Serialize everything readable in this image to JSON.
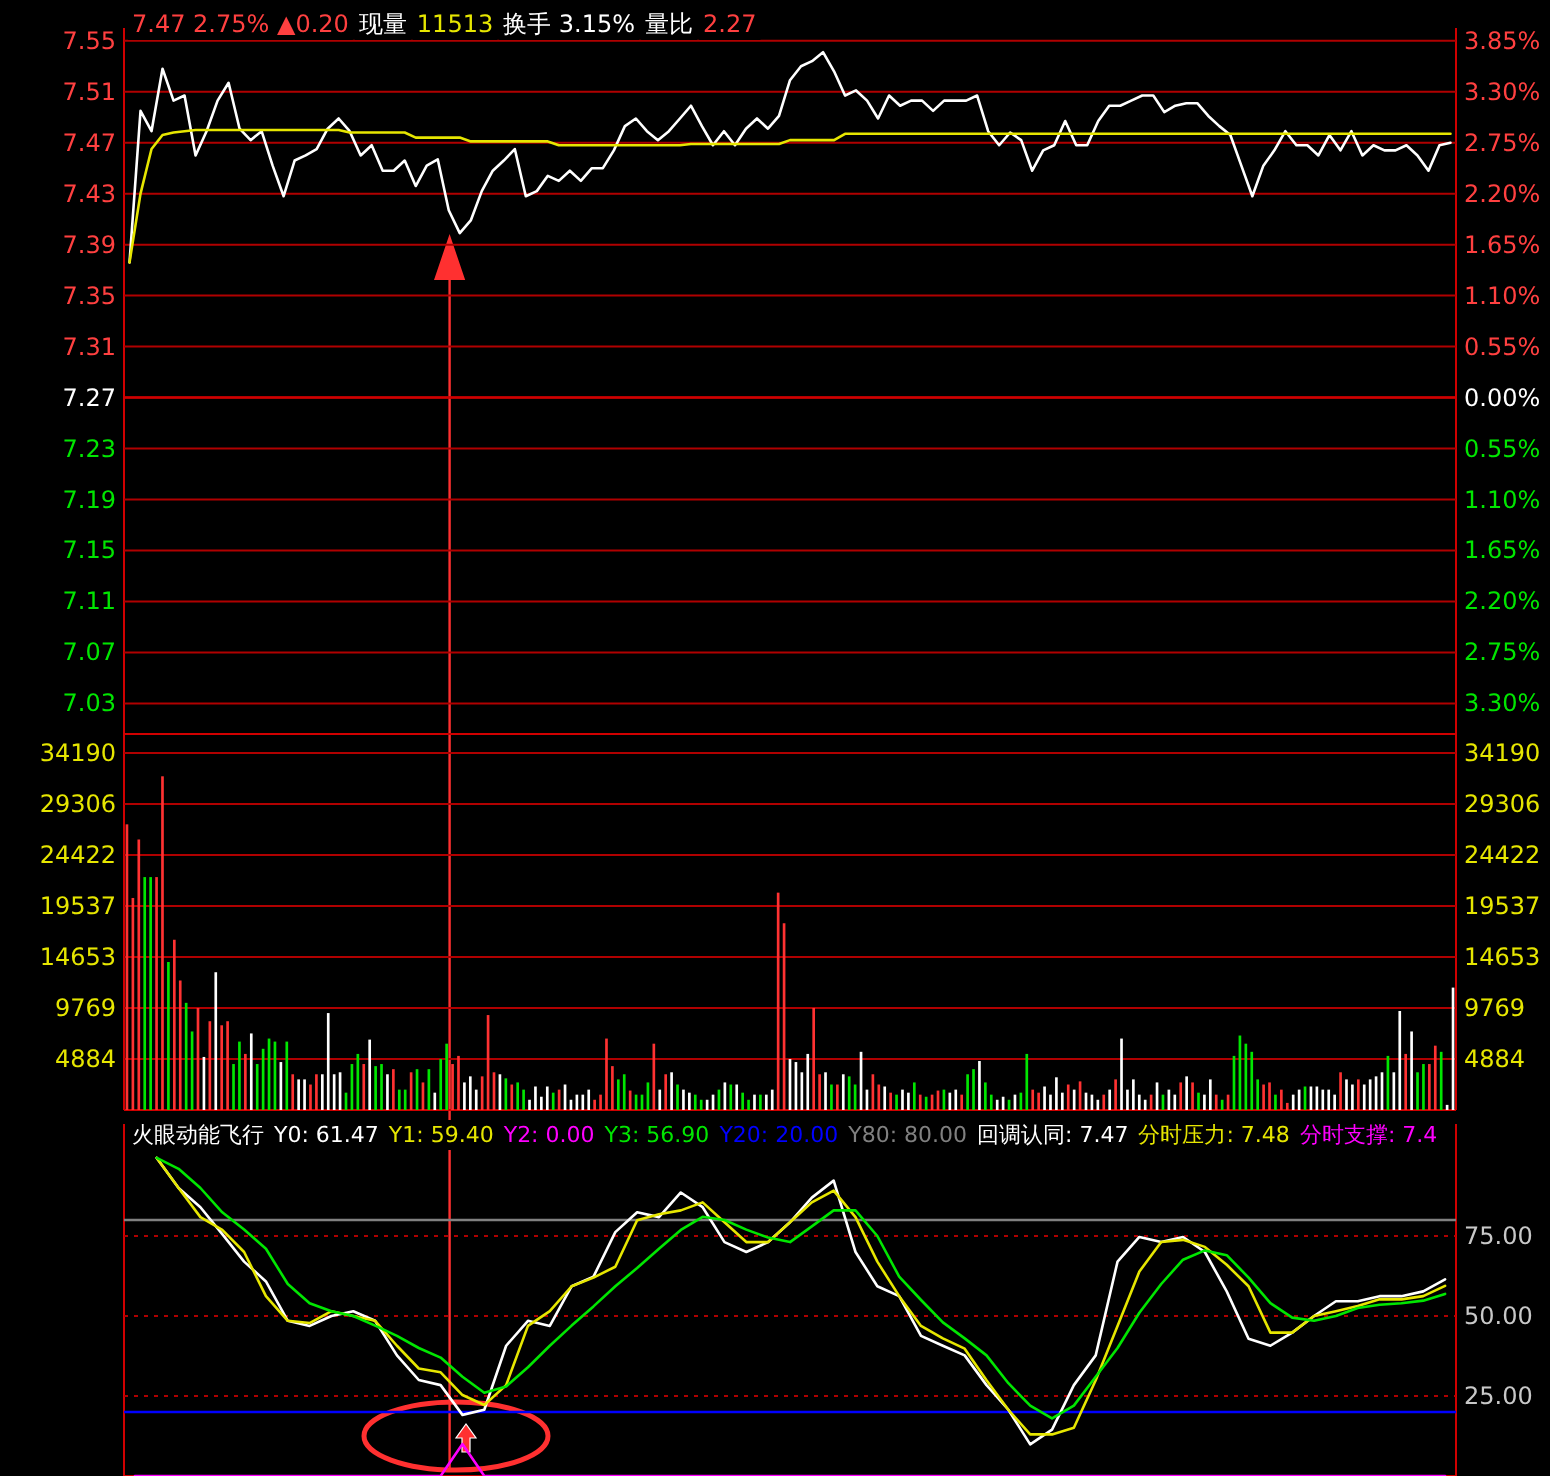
{
  "chart_data": [
    {
      "type": "line",
      "annotations": [
        "7.47 2.75% ▲0.20",
        "现量",
        "11513",
        "换手 3.15%",
        "量比",
        "2.27"
      ],
      "categories": [
        null,
        null,
        null,
        null,
        null,
        null,
        null,
        null,
        null,
        null,
        null,
        null,
        null,
        null,
        null,
        null,
        null,
        null,
        null,
        null,
        null,
        null,
        null,
        null,
        null,
        null,
        null,
        null,
        null,
        null,
        null,
        null,
        null,
        null,
        null,
        null,
        null,
        null,
        null,
        null,
        null,
        null,
        null,
        null,
        null,
        null,
        null,
        null,
        null,
        null,
        null,
        null,
        null,
        null,
        null,
        null,
        null,
        null,
        null,
        null,
        null,
        null,
        null,
        null,
        null,
        null,
        null,
        null,
        null,
        null,
        null,
        null,
        null,
        null,
        null,
        null,
        null,
        null,
        null,
        null,
        null,
        null,
        null,
        null,
        null,
        null,
        null,
        null,
        null,
        null,
        null,
        null,
        null,
        null,
        null,
        null,
        null,
        null,
        null,
        null,
        null,
        null,
        null,
        null,
        null,
        null,
        null,
        null,
        null,
        null,
        null,
        null,
        null,
        null,
        null,
        null,
        null,
        null,
        null,
        null,
        null
      ],
      "ylim": [
        7.006,
        7.56
      ],
      "yticks": [
        7.55,
        7.51,
        7.47,
        7.43,
        7.39,
        7.35,
        7.31,
        7.27,
        7.23,
        7.19,
        7.15,
        7.11,
        7.07,
        7.03
      ],
      "y2lim": [
        -3.631,
        3.989
      ],
      "y2ticks": [
        {
          "value": 3.85,
          "label": "3.85%"
        },
        {
          "value": 3.3,
          "label": "3.30%"
        },
        {
          "value": 2.75,
          "label": "2.75%"
        },
        {
          "value": 2.2,
          "label": "2.20%"
        },
        {
          "value": 1.65,
          "label": "1.65%"
        },
        {
          "value": 1.1,
          "label": "1.10%"
        },
        {
          "value": 0.55,
          "label": "0.55%"
        },
        {
          "value": 0,
          "label": "0.00%"
        },
        {
          "value": -0.55,
          "label": "0.55%"
        },
        {
          "value": -1.1,
          "label": "1.10%"
        },
        {
          "value": -1.65,
          "label": "1.65%"
        },
        {
          "value": -2.2,
          "label": "2.20%"
        },
        {
          "value": -2.75,
          "label": "2.75%"
        },
        {
          "value": -3.3,
          "label": "3.30%"
        }
      ],
      "grid": "y",
      "tick_labels": "y",
      "ref_lines": [
        {
          "axis": "y",
          "value": 7.27,
          "color": "#d00000"
        }
      ],
      "series": [
        {
          "color": "#ffffff",
          "values": [
            7.376,
            7.495,
            7.479,
            7.528,
            7.503,
            7.507,
            7.46,
            7.479,
            7.503,
            7.517,
            7.481,
            7.472,
            7.479,
            7.452,
            7.428,
            7.456,
            7.46,
            7.465,
            7.481,
            7.489,
            7.479,
            7.46,
            7.468,
            7.448,
            7.448,
            7.456,
            7.436,
            7.452,
            7.457,
            7.417,
            7.399,
            7.409,
            7.432,
            7.448,
            7.456,
            7.465,
            7.428,
            7.432,
            7.444,
            7.44,
            7.448,
            7.44,
            7.45,
            7.45,
            7.464,
            7.483,
            7.489,
            7.479,
            7.472,
            7.479,
            7.489,
            7.499,
            7.483,
            7.468,
            7.479,
            7.468,
            7.481,
            7.489,
            7.481,
            7.491,
            7.519,
            7.53,
            7.534,
            7.541,
            7.526,
            7.507,
            7.511,
            7.503,
            7.489,
            7.507,
            7.499,
            7.503,
            7.503,
            7.495,
            7.503,
            7.503,
            7.503,
            7.507,
            7.479,
            7.468,
            7.478,
            7.472,
            7.448,
            7.464,
            7.468,
            7.487,
            7.468,
            7.468,
            7.487,
            7.499,
            7.499,
            7.503,
            7.507,
            7.507,
            7.494,
            7.499,
            7.501,
            7.501,
            7.491,
            7.483,
            7.476,
            7.452,
            7.428,
            7.452,
            7.464,
            7.479,
            7.468,
            7.468,
            7.46,
            7.476,
            7.464,
            7.479,
            7.46,
            7.468,
            7.464,
            7.464,
            7.468,
            7.46,
            7.448,
            7.468,
            7.47
          ]
        },
        {
          "color": "#e6e600",
          "values": [
            7.376,
            7.43,
            7.465,
            7.476,
            7.478,
            7.479,
            7.48,
            7.48,
            7.48,
            7.48,
            7.48,
            7.48,
            7.48,
            7.48,
            7.48,
            7.48,
            7.48,
            7.48,
            7.48,
            7.48,
            7.478,
            7.478,
            7.478,
            7.478,
            7.478,
            7.478,
            7.474,
            7.474,
            7.474,
            7.474,
            7.474,
            7.471,
            7.471,
            7.471,
            7.471,
            7.471,
            7.471,
            7.471,
            7.471,
            7.468,
            7.468,
            7.468,
            7.468,
            7.468,
            7.468,
            7.468,
            7.468,
            7.468,
            7.468,
            7.468,
            7.468,
            7.469,
            7.469,
            7.469,
            7.469,
            7.469,
            7.469,
            7.469,
            7.469,
            7.469,
            7.472,
            7.472,
            7.472,
            7.472,
            7.472,
            7.477,
            7.477,
            7.477,
            7.477,
            7.477,
            7.477,
            7.477,
            7.477,
            7.477,
            7.477,
            7.477,
            7.477,
            7.477,
            7.477,
            7.477,
            7.477,
            7.477,
            7.477,
            7.477,
            7.477,
            7.477,
            7.477,
            7.477,
            7.477,
            7.477,
            7.477,
            7.477,
            7.477,
            7.477,
            7.477,
            7.477,
            7.477,
            7.477,
            7.477,
            7.477,
            7.477,
            7.477,
            7.477,
            7.477,
            7.477,
            7.477,
            7.477,
            7.477,
            7.477,
            7.477,
            7.477,
            7.477,
            7.477,
            7.477,
            7.477,
            7.477,
            7.477,
            7.477,
            7.477,
            7.477,
            7.477
          ]
        }
      ]
    },
    {
      "type": "bar",
      "categories": [
        null,
        null,
        null,
        null,
        null,
        null,
        null,
        null,
        null,
        null,
        null,
        null,
        null,
        null,
        null,
        null,
        null,
        null,
        null,
        null,
        null,
        null,
        null,
        null,
        null,
        null,
        null,
        null,
        null,
        null,
        null,
        null,
        null,
        null,
        null,
        null,
        null,
        null,
        null,
        null,
        null,
        null,
        null,
        null,
        null,
        null,
        null,
        null,
        null,
        null,
        null,
        null,
        null,
        null,
        null,
        null,
        null,
        null,
        null,
        null,
        null,
        null,
        null,
        null,
        null,
        null,
        null,
        null,
        null,
        null,
        null,
        null,
        null,
        null,
        null,
        null,
        null,
        null,
        null,
        null,
        null,
        null,
        null,
        null,
        null,
        null,
        null,
        null,
        null,
        null,
        null,
        null,
        null,
        null,
        null,
        null,
        null,
        null,
        null,
        null,
        null,
        null,
        null,
        null,
        null,
        null,
        null,
        null,
        null,
        null,
        null,
        null,
        null,
        null,
        null,
        null,
        null,
        null,
        null,
        null,
        null,
        null,
        null,
        null,
        null,
        null,
        null,
        null,
        null,
        null,
        null,
        null,
        null,
        null,
        null,
        null,
        null,
        null,
        null,
        null,
        null,
        null,
        null,
        null,
        null,
        null,
        null,
        null,
        null,
        null,
        null,
        null,
        null,
        null,
        null,
        null,
        null,
        null,
        null,
        null,
        null,
        null,
        null,
        null,
        null,
        null,
        null,
        null,
        null,
        null,
        null,
        null,
        null,
        null,
        null,
        null,
        null,
        null,
        null,
        null,
        null,
        null,
        null,
        null,
        null,
        null,
        null,
        null,
        null,
        null,
        null,
        null,
        null,
        null,
        null,
        null,
        null,
        null,
        null,
        null,
        null,
        null,
        null,
        null,
        null,
        null,
        null,
        null,
        null,
        null,
        null,
        null,
        null,
        null,
        null,
        null,
        null,
        null,
        null,
        null,
        null,
        null,
        null,
        null,
        null
      ],
      "ylim": [
        0,
        36000
      ],
      "yticks": [
        34190,
        29306,
        24422,
        19537,
        14653,
        9769,
        4884
      ],
      "y2lim": [
        0,
        36000
      ],
      "y2ticks": [
        34190,
        29306,
        24422,
        19537,
        14653,
        9769,
        4884
      ],
      "grid": "y",
      "tick_labels": "y",
      "values": [
        27350,
        20300,
        25900,
        22300,
        22300,
        22300,
        31950,
        14170,
        16300,
        12400,
        10260,
        7520,
        9770,
        5080,
        8500,
        13190,
        8110,
        8500,
        4400,
        6550,
        5370,
        7330,
        4400,
        5860,
        6840,
        6550,
        4590,
        6550,
        3420,
        2930,
        2930,
        2440,
        3420,
        3420,
        9280,
        3420,
        3610,
        1660,
        4400,
        5370,
        4400,
        6740,
        4200,
        4400,
        3420,
        3910,
        1950,
        1950,
        3610,
        3910,
        2640,
        3910,
        1660,
        4880,
        6350,
        4400,
        5180,
        2640,
        3220,
        1950,
        3220,
        9090,
        3610,
        3420,
        3030,
        2440,
        2640,
        1950,
        980,
        2250,
        1270,
        2250,
        1660,
        1950,
        2440,
        980,
        1470,
        1470,
        1950,
        980,
        1470,
        6840,
        4200,
        2930,
        3420,
        1860,
        1470,
        1470,
        2640,
        6350,
        1950,
        3420,
        3610,
        2440,
        1950,
        1660,
        1470,
        980,
        980,
        1470,
        1950,
        2640,
        2440,
        2440,
        1660,
        980,
        1470,
        1470,
        1470,
        1950,
        20810,
        17880,
        4880,
        4590,
        3610,
        5370,
        9770,
        3420,
        3610,
        2440,
        2440,
        3420,
        3220,
        2440,
        5570,
        1950,
        3420,
        2440,
        2250,
        1660,
        1470,
        1950,
        1660,
        2640,
        1470,
        1270,
        1470,
        1860,
        1950,
        1660,
        1950,
        1470,
        3420,
        3910,
        4690,
        2640,
        1470,
        980,
        1270,
        980,
        1470,
        1660,
        5370,
        1950,
        1660,
        2250,
        1470,
        3130,
        1660,
        2440,
        1950,
        2740,
        1660,
        1470,
        980,
        1470,
        1950,
        2930,
        6840,
        1950,
        2930,
        1470,
        980,
        1470,
        2640,
        1470,
        1950,
        1470,
        2640,
        3220,
        2640,
        1660,
        1470,
        2930,
        1470,
        980,
        1470,
        5180,
        7130,
        6350,
        5570,
        2930,
        2440,
        2640,
        1470,
        1950,
        680,
        1470,
        1950,
        2250,
        2250,
        2250,
        1950,
        1950,
        1470,
        3610,
        2930,
        2440,
        2930,
        2440,
        2930,
        3220,
        3610,
        5180,
        3610,
        9480,
        5370,
        7520,
        3610,
        4400,
        4400,
        6160,
        5570,
        490,
        11720
      ],
      "colors": [
        "#ff3232",
        "#ff3232",
        "#ff3232",
        "#00e600",
        "#00e600",
        "#ff3232",
        "#ff3232",
        "#00e600",
        "#ff3232",
        "#ff3232",
        "#00e600",
        "#00e600",
        "#ff3232",
        "#ffffff",
        "#ff3232",
        "#ffffff",
        "#ff3232",
        "#ff3232",
        "#00e600",
        "#00e600",
        "#ff3232",
        "#ffffff",
        "#00e600",
        "#00e600",
        "#00e600",
        "#00e600",
        "#ffffff",
        "#00e600",
        "#ff3232",
        "#ffffff",
        "#ffffff",
        "#ff3232",
        "#ff3232",
        "#ffffff",
        "#ffffff",
        "#ffffff",
        "#ffffff",
        "#00e600",
        "#00e600",
        "#00e600",
        "#ff3232",
        "#ffffff",
        "#00e600",
        "#00e600",
        "#ffffff",
        "#ff3232",
        "#00e600",
        "#00e600",
        "#ff3232",
        "#00e600",
        "#ff3232",
        "#00e600",
        "#ffffff",
        "#00e600",
        "#00e600",
        "#ff3232",
        "#ff3232",
        "#ffffff",
        "#ffffff",
        "#ffffff",
        "#ff3232",
        "#ff3232",
        "#ff3232",
        "#ffffff",
        "#00e600",
        "#ff3232",
        "#00e600",
        "#00e600",
        "#ffffff",
        "#ffffff",
        "#ffffff",
        "#ffffff",
        "#00e600",
        "#ff3232",
        "#ffffff",
        "#ffffff",
        "#ffffff",
        "#ffffff",
        "#ffffff",
        "#ff3232",
        "#ff3232",
        "#ff3232",
        "#ff3232",
        "#00e600",
        "#00e600",
        "#ff3232",
        "#00e600",
        "#00e600",
        "#00e600",
        "#ff3232",
        "#ffffff",
        "#ff3232",
        "#ffffff",
        "#00e600",
        "#ffffff",
        "#ffffff",
        "#00e600",
        "#00e600",
        "#ffffff",
        "#ffffff",
        "#00e600",
        "#ffffff",
        "#00e600",
        "#ffffff",
        "#00e600",
        "#00e600",
        "#ffffff",
        "#00e600",
        "#ffffff",
        "#ffffff",
        "#ff3232",
        "#ff3232",
        "#ffffff",
        "#ffffff",
        "#ffffff",
        "#ffffff",
        "#ff3232",
        "#ff3232",
        "#ffffff",
        "#00e600",
        "#ff3232",
        "#ffffff",
        "#00e600",
        "#00e600",
        "#ffffff",
        "#ffffff",
        "#ff3232",
        "#ff3232",
        "#ffffff",
        "#ff3232",
        "#00e600",
        "#ffffff",
        "#ffffff",
        "#00e600",
        "#ff3232",
        "#00e600",
        "#ff3232",
        "#ff3232",
        "#00e600",
        "#ffffff",
        "#ffffff",
        "#ff3232",
        "#00e600",
        "#00e600",
        "#ffffff",
        "#00e600",
        "#00e600",
        "#ffffff",
        "#ffffff",
        "#00e600",
        "#ffffff",
        "#00e600",
        "#00e600",
        "#ff3232",
        "#ff3232",
        "#ffffff",
        "#ffffff",
        "#ffffff",
        "#ffffff",
        "#ff3232",
        "#ffffff",
        "#ff3232",
        "#ffffff",
        "#ffffff",
        "#ffffff",
        "#ff3232",
        "#ffffff",
        "#ff3232",
        "#ffffff",
        "#ffffff",
        "#ffffff",
        "#ffffff",
        "#ffffff",
        "#ff3232",
        "#ffffff",
        "#00e600",
        "#ffffff",
        "#ffffff",
        "#ff3232",
        "#ffffff",
        "#ff3232",
        "#00e600",
        "#ffffff",
        "#ffffff",
        "#ff3232",
        "#00e600",
        "#ff3232",
        "#00e600",
        "#00e600",
        "#00e600",
        "#00e600",
        "#00e600",
        "#ff3232",
        "#ff3232",
        "#00e600",
        "#ff3232",
        "#ff3232",
        "#ffffff",
        "#ffffff",
        "#00e600",
        "#ffffff",
        "#ffffff",
        "#ffffff",
        "#ffffff",
        "#ffffff",
        "#ff3232",
        "#ffffff",
        "#ffffff",
        "#ff3232",
        "#ffffff",
        "#ffffff",
        "#ffffff",
        "#ffffff",
        "#00e600",
        "#ffffff",
        "#ffffff",
        "#ff3232",
        "#ffffff",
        "#00e600",
        "#00e600",
        "#ff3232",
        "#ff3232",
        "#00e600",
        "#ffffff",
        "#ffffff"
      ]
    },
    {
      "type": "line",
      "title": "火眼动能飞行",
      "annotations": [
        "回调认同: 7.47",
        "分时压力: 7.48",
        "分时支撑: 7.4"
      ],
      "categories": [
        null,
        null,
        null,
        null,
        null,
        null,
        null,
        null,
        null,
        null,
        null,
        null,
        null,
        null,
        null,
        null,
        null,
        null,
        null,
        null,
        null,
        null,
        null,
        null,
        null,
        null,
        null,
        null,
        null,
        null,
        null,
        null,
        null,
        null,
        null,
        null,
        null,
        null,
        null,
        null,
        null,
        null,
        null,
        null,
        null,
        null,
        null,
        null,
        null,
        null,
        null,
        null,
        null,
        null,
        null,
        null,
        null,
        null,
        null,
        null,
        null
      ],
      "ylim": [
        0,
        110
      ],
      "yticks": [
        {
          "value": 25,
          "label": "25.00"
        },
        {
          "value": 50,
          "label": "50.00"
        },
        {
          "value": 75,
          "label": "75.00"
        }
      ],
      "grid": "y",
      "tick_labels": "y",
      "ref_lines": [
        {
          "axis": "y",
          "value": 20,
          "label": "Y20: 20.00",
          "color": "#0000ff"
        },
        {
          "axis": "y",
          "value": 80,
          "label": "Y80: 80.00",
          "color": "#808080"
        }
      ],
      "series": [
        {
          "name": "Y0: 61.47",
          "color": "#ffffff",
          "values": [
            null,
            99.4,
            90,
            84,
            75.6,
            67,
            60.8,
            48.5,
            46.9,
            50,
            51.5,
            48.5,
            37.7,
            30,
            28.4,
            19.1,
            20.7,
            40.7,
            48.5,
            46.9,
            59.3,
            62.3,
            76.2,
            82.4,
            80.9,
            88.6,
            84,
            73.1,
            70,
            73.1,
            79.3,
            87,
            92.3,
            70,
            59.3,
            56.2,
            43.8,
            40.7,
            37.7,
            28.4,
            20.7,
            9.9,
            14.5,
            28.4,
            37.7,
            67,
            74.7,
            73.1,
            74.7,
            70,
            57.7,
            42.9,
            40.7,
            44.8,
            50,
            54.6,
            54.6,
            56.2,
            56.2,
            57.7,
            61.47
          ]
        },
        {
          "name": "Y1: 59.40",
          "color": "#e6e600",
          "values": [
            null,
            99.4,
            90,
            80.9,
            76.9,
            70,
            56.2,
            48.5,
            47.8,
            51.5,
            50,
            48.5,
            40.7,
            33.6,
            32.4,
            25.3,
            22.2,
            28.4,
            46.9,
            51.5,
            59.3,
            62,
            65.4,
            79.9,
            81.8,
            83,
            85.5,
            79.3,
            73.1,
            73.1,
            79.3,
            85.5,
            89.2,
            80.9,
            67,
            56.2,
            46.9,
            43,
            39.8,
            29.9,
            20.7,
            13,
            13,
            15.1,
            29.9,
            46.9,
            63.9,
            73.1,
            73.8,
            71.6,
            66,
            59.3,
            44.8,
            44.8,
            50,
            51.5,
            53.1,
            55.2,
            55.2,
            56.2,
            59.4
          ]
        },
        {
          "name": "Y2: 0.00",
          "color": "#ff00ff",
          "values": [
            0,
            0,
            0,
            0,
            0,
            0,
            0,
            0,
            0,
            0,
            0,
            0,
            0,
            0,
            0,
            10,
            0,
            0,
            0,
            0,
            0,
            0,
            0,
            0,
            0,
            0,
            0,
            0,
            0,
            0,
            0,
            0,
            0,
            0,
            0,
            0,
            0,
            0,
            0,
            0,
            0,
            0,
            0,
            0,
            0,
            0,
            0,
            0,
            0,
            0,
            0,
            0,
            0,
            0,
            0,
            0,
            0,
            0,
            0,
            0,
            0
          ]
        },
        {
          "name": "Y3: 56.90",
          "color": "#00e600",
          "values": [
            null,
            99.4,
            96,
            90,
            82.4,
            77,
            71,
            60,
            54,
            51.5,
            50,
            47,
            43.8,
            40,
            37,
            31,
            26,
            28,
            34,
            40.7,
            47,
            53,
            59.3,
            65,
            71,
            76.9,
            81,
            80,
            77,
            74.5,
            73.1,
            78,
            83,
            83,
            75,
            62.3,
            55,
            48,
            43,
            37.7,
            29,
            22,
            18,
            22,
            31,
            40,
            51,
            60,
            67.6,
            70.5,
            69,
            62,
            54,
            49.5,
            48.5,
            50,
            52.5,
            53.5,
            54,
            54.8,
            56.9
          ]
        }
      ]
    }
  ]
}
